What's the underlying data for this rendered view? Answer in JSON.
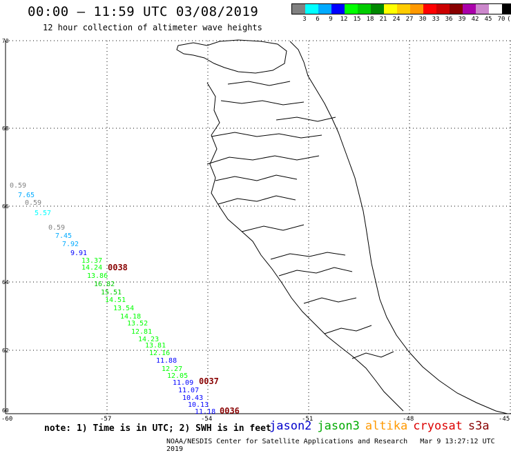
{
  "header": {
    "title": "00:00 – 11:59 UTC 03/08/2019",
    "subtitle": "12 hour collection of altimeter wave heights"
  },
  "legend": {
    "colors": [
      "#808080",
      "#00ffff",
      "#00aaff",
      "#0000ff",
      "#00ff00",
      "#00cc00",
      "#008800",
      "#ffff00",
      "#ffcc00",
      "#ff9900",
      "#ff0000",
      "#cc0000",
      "#880000",
      "#aa00aa",
      "#cc88cc",
      "#ffffff",
      "#000000"
    ],
    "labels": [
      "3",
      "6",
      "9",
      "12",
      "15",
      "18",
      "21",
      "24",
      "27",
      "30",
      "33",
      "36",
      "39",
      "42",
      "45",
      "70",
      "(ft)"
    ]
  },
  "axes": {
    "lat_labels": [
      "70",
      "68",
      "66",
      "64",
      "62",
      "60"
    ],
    "lon_labels": [
      "-60",
      "-57",
      "-54",
      "-51",
      "-48",
      "-45"
    ]
  },
  "observations": [
    {
      "value": "0.59",
      "color": "#808080"
    },
    {
      "value": "7.65",
      "color": "#00aaff"
    },
    {
      "value": "0.59",
      "color": "#808080"
    },
    {
      "value": "5.57",
      "color": "#00ffff"
    },
    {
      "value": "0.59",
      "color": "#808080"
    },
    {
      "value": "7.45",
      "color": "#00aaff"
    },
    {
      "value": "7.92",
      "color": "#00aaff"
    },
    {
      "value": "9.91",
      "color": "#0000ff"
    },
    {
      "value": "13.37",
      "color": "#00ff00"
    },
    {
      "value": "14.24",
      "color": "#00ff00"
    },
    {
      "value": "13.86",
      "color": "#00ff00"
    },
    {
      "value": "16.82",
      "color": "#00cc00"
    },
    {
      "value": "15.51",
      "color": "#00cc00"
    },
    {
      "value": "14.51",
      "color": "#00ff00"
    },
    {
      "value": "13.54",
      "color": "#00ff00"
    },
    {
      "value": "14.18",
      "color": "#00ff00"
    },
    {
      "value": "13.52",
      "color": "#00ff00"
    },
    {
      "value": "12.81",
      "color": "#00ff00"
    },
    {
      "value": "14.23",
      "color": "#00ff00"
    },
    {
      "value": "13.81",
      "color": "#00ff00"
    },
    {
      "value": "12.16",
      "color": "#00ff00"
    },
    {
      "value": "11.88",
      "color": "#0000ff"
    },
    {
      "value": "12.27",
      "color": "#00ff00"
    },
    {
      "value": "12.05",
      "color": "#00ff00"
    },
    {
      "value": "11.09",
      "color": "#0000ff"
    },
    {
      "value": "11.07",
      "color": "#0000ff"
    },
    {
      "value": "10.43",
      "color": "#0000ff"
    },
    {
      "value": "10.13",
      "color": "#0000ff"
    },
    {
      "value": "11.18",
      "color": "#0000ff"
    }
  ],
  "pass_times": [
    "0038",
    "0037",
    "0036"
  ],
  "pass_color": "#880000",
  "note": "note: 1) Time is in UTC; 2) SWH is in feet",
  "satellites": [
    {
      "name": "jason2",
      "color": "#0000cc"
    },
    {
      "name": "jason3",
      "color": "#00aa00"
    },
    {
      "name": "altika",
      "color": "#ff9900"
    },
    {
      "name": "cryosat",
      "color": "#dd0000"
    },
    {
      "name": "s3a",
      "color": "#880000"
    }
  ],
  "footer": {
    "credit": "NOAA/NESDIS Center for Satellite Applications and Research",
    "timestamp": "Mar  9 13:27:12 UTC 2019"
  }
}
